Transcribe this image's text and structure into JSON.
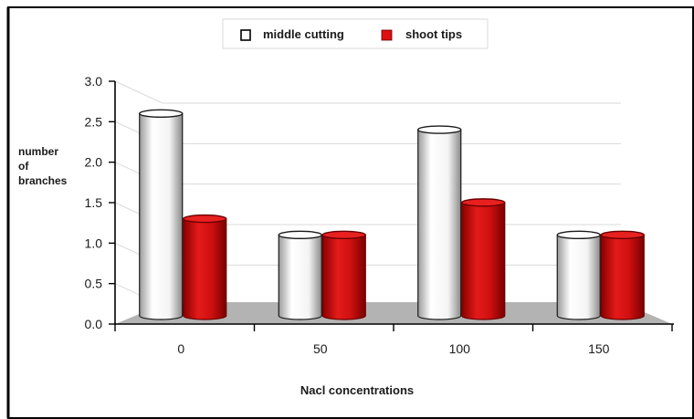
{
  "chart_data": {
    "type": "bar",
    "title": "",
    "xlabel": "Nacl concentrations",
    "ylabel": [
      "number",
      "of",
      "branches"
    ],
    "categories": [
      "0",
      "50",
      "100",
      "150"
    ],
    "y_ticks": [
      "0.0",
      "0.5",
      "1.0",
      "1.5",
      "2.0",
      "2.5",
      "3.0"
    ],
    "ylim": [
      0,
      3.0
    ],
    "grid": true,
    "legend_position": "top",
    "series": [
      {
        "name": "middle cutting",
        "values": [
          2.5,
          1.0,
          2.3,
          1.0
        ],
        "color": "#ffffff"
      },
      {
        "name": "shoot tips",
        "values": [
          1.2,
          1.0,
          1.4,
          1.0
        ],
        "color": "#dd1111"
      }
    ],
    "floor_color": "#b3b3b3"
  }
}
